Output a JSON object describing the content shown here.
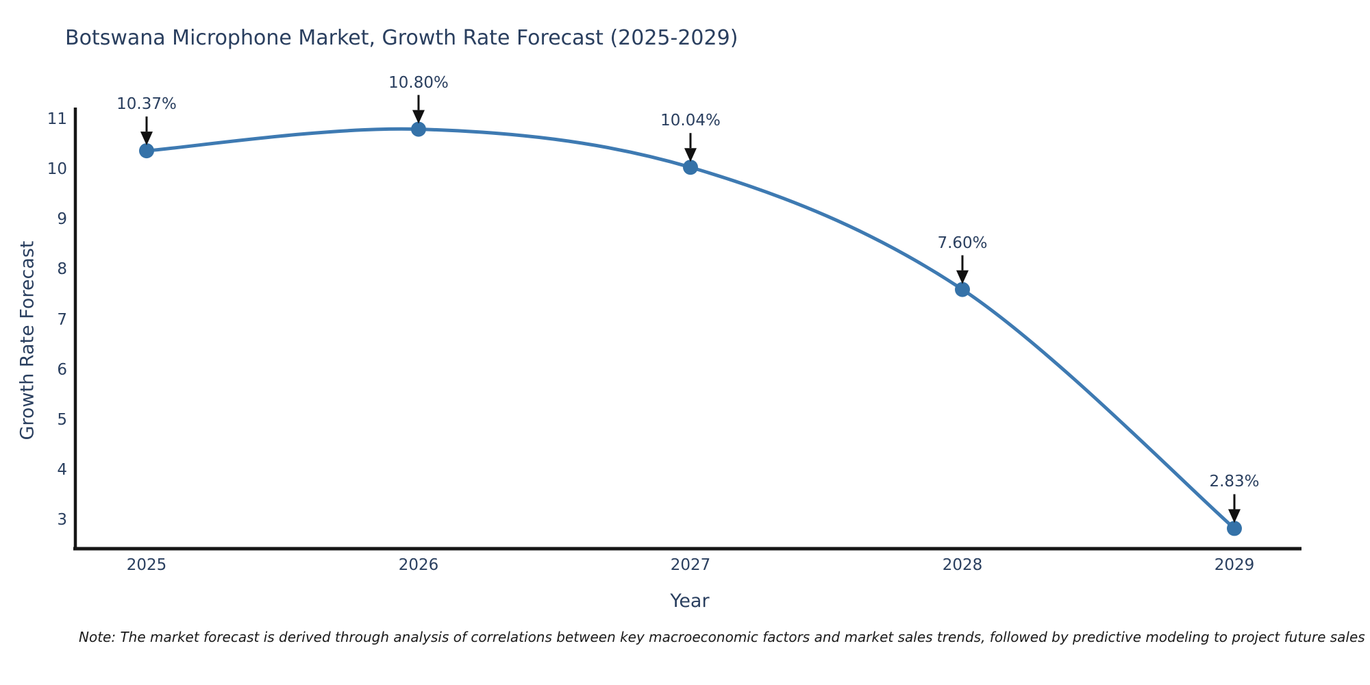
{
  "chart_data": {
    "type": "line",
    "title": "Botswana Microphone Market, Growth Rate Forecast (2025-2029)",
    "xlabel": "Year",
    "ylabel": "Growth Rate Forecast",
    "categories": [
      "2025",
      "2026",
      "2027",
      "2028",
      "2029"
    ],
    "series": [
      {
        "name": "Growth Rate Forecast",
        "values": [
          10.37,
          10.8,
          10.04,
          7.6,
          2.83
        ],
        "point_labels": [
          "10.37%",
          "10.80%",
          "10.04%",
          "7.60%",
          "2.83%"
        ]
      }
    ],
    "yticks": [
      3,
      4,
      5,
      6,
      7,
      8,
      9,
      10,
      11
    ],
    "ylim": [
      2.43,
      11.23
    ],
    "grid": false,
    "legend_position": "none",
    "line_shape": "spline",
    "markers": true,
    "annotations_have_arrows": true,
    "colors": {
      "line": "#3e7ab2",
      "marker": "#3572a8",
      "text": "#2a3f5f",
      "axis": "#161616",
      "arrow": "#111111",
      "note_text": "#1a1a1a",
      "background": "#ffffff"
    },
    "note": "Note: The market forecast is derived through analysis of correlations between key macroeconomic factors and market sales trends, followed by predictive modeling to project future sales"
  }
}
